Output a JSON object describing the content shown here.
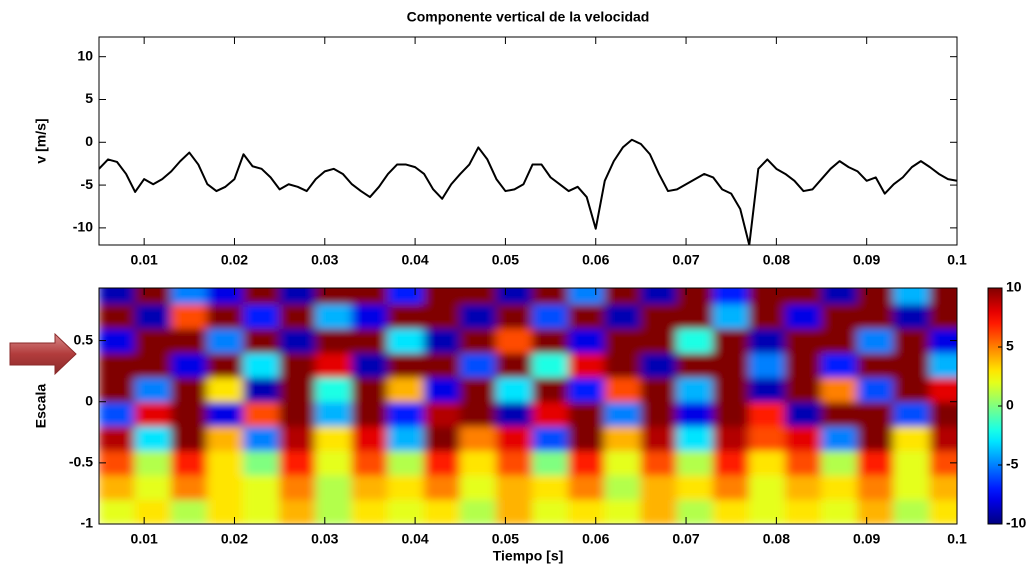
{
  "chart_data": [
    {
      "type": "line",
      "title": "Componente vertical de la velocidad",
      "ylabel": "v [m/s]",
      "xlim": [
        0.005,
        0.1
      ],
      "ylim": [
        -12,
        12.3
      ],
      "xticks": [
        0.01,
        0.02,
        0.03,
        0.04,
        0.05,
        0.06,
        0.07,
        0.08,
        0.09,
        0.1
      ],
      "yticks": [
        -10,
        -5,
        0,
        5,
        10
      ],
      "color": "#000000",
      "x": [
        0.005,
        0.006,
        0.007,
        0.008,
        0.009,
        0.01,
        0.011,
        0.012,
        0.013,
        0.014,
        0.015,
        0.016,
        0.017,
        0.018,
        0.019,
        0.02,
        0.021,
        0.022,
        0.023,
        0.024,
        0.025,
        0.026,
        0.027,
        0.028,
        0.029,
        0.03,
        0.031,
        0.032,
        0.033,
        0.034,
        0.035,
        0.036,
        0.037,
        0.038,
        0.039,
        0.04,
        0.041,
        0.042,
        0.043,
        0.044,
        0.045,
        0.046,
        0.047,
        0.048,
        0.049,
        0.05,
        0.051,
        0.052,
        0.053,
        0.054,
        0.055,
        0.056,
        0.057,
        0.058,
        0.059,
        0.06,
        0.061,
        0.062,
        0.063,
        0.064,
        0.065,
        0.066,
        0.067,
        0.068,
        0.069,
        0.07,
        0.071,
        0.072,
        0.073,
        0.074,
        0.075,
        0.076,
        0.077,
        0.078,
        0.079,
        0.08,
        0.081,
        0.082,
        0.083,
        0.084,
        0.085,
        0.086,
        0.087,
        0.088,
        0.089,
        0.09,
        0.091,
        0.092,
        0.093,
        0.094,
        0.095,
        0.096,
        0.097,
        0.098,
        0.099,
        0.1
      ],
      "values": [
        -3.1,
        -2,
        -2.3,
        -3.7,
        -5.8,
        -4.3,
        -4.9,
        -4.3,
        -3.4,
        -2.2,
        -1.2,
        -2.6,
        -4.9,
        -5.7,
        -5.2,
        -4.3,
        -1.4,
        -2.8,
        -3.1,
        -4.1,
        -5.5,
        -4.9,
        -5.2,
        -5.7,
        -4.3,
        -3.4,
        -3.1,
        -3.7,
        -4.9,
        -5.7,
        -6.4,
        -5.2,
        -3.7,
        -2.6,
        -2.6,
        -2.9,
        -3.7,
        -5.5,
        -6.6,
        -4.9,
        -3.7,
        -2.6,
        -0.6,
        -2.0,
        -4.3,
        -5.7,
        -5.5,
        -4.9,
        -2.6,
        -2.6,
        -4.1,
        -4.9,
        -5.7,
        -5.2,
        -6.4,
        -10.1,
        -4.5,
        -2.2,
        -0.6,
        0.3,
        -0.2,
        -1.4,
        -3.7,
        -5.7,
        -5.5,
        -4.9,
        -4.3,
        -3.7,
        -4.1,
        -5.5,
        -6.0,
        -7.8,
        -12,
        -3.1,
        -2.0,
        -3.1,
        -3.7,
        -4.5,
        -5.7,
        -5.5,
        -4.3,
        -3.1,
        -2.2,
        -2.9,
        -3.4,
        -4.5,
        -4.1,
        -6.0,
        -4.9,
        -4.1,
        -2.9,
        -2.2,
        -2.9,
        -3.7,
        -4.3,
        -4.5
      ]
    },
    {
      "type": "heatmap",
      "xlabel": "Tiempo [s]",
      "ylabel": "Escala",
      "colormap": "jet",
      "xlim": [
        0.005,
        0.1
      ],
      "ylim": [
        -1,
        0.93
      ],
      "xticks": [
        0.01,
        0.02,
        0.03,
        0.04,
        0.05,
        0.06,
        0.07,
        0.08,
        0.09,
        0.1
      ],
      "yticks": [
        -1,
        -0.5,
        0,
        0.5
      ],
      "clim": [
        -10,
        10
      ],
      "cticks": [
        -10,
        -5,
        0,
        5,
        10
      ],
      "x": [
        0.007,
        0.011,
        0.015,
        0.019,
        0.023,
        0.027,
        0.031,
        0.035,
        0.039,
        0.043,
        0.047,
        0.051,
        0.055,
        0.059,
        0.063,
        0.067,
        0.071,
        0.075,
        0.079,
        0.083,
        0.087,
        0.091,
        0.095,
        0.099
      ],
      "y": [
        -0.9,
        -0.7,
        -0.5,
        -0.3,
        -0.1,
        0.1,
        0.3,
        0.5,
        0.7,
        0.9
      ],
      "z": [
        [
          2,
          3,
          1,
          3,
          2,
          4,
          1,
          3,
          2,
          3,
          1,
          4,
          2,
          3,
          2,
          4,
          1,
          3,
          2,
          3,
          2,
          4,
          1,
          3
        ],
        [
          4,
          2,
          5,
          3,
          2,
          5,
          1,
          4,
          3,
          5,
          2,
          4,
          3,
          5,
          1,
          4,
          3,
          5,
          2,
          4,
          3,
          5,
          2,
          4
        ],
        [
          6,
          1,
          7,
          3,
          0,
          7,
          2,
          6,
          1,
          7,
          3,
          6,
          0,
          7,
          2,
          6,
          1,
          7,
          3,
          6,
          1,
          7,
          2,
          6
        ],
        [
          9,
          -3,
          10,
          4,
          -5,
          9,
          3,
          8,
          -4,
          10,
          5,
          8,
          -6,
          10,
          4,
          9,
          -3,
          9,
          6,
          8,
          -5,
          10,
          3,
          9
        ],
        [
          -6,
          8,
          10,
          -8,
          6,
          10,
          -4,
          10,
          -7,
          9,
          10,
          -9,
          8,
          10,
          -5,
          10,
          -8,
          10,
          7,
          -9,
          10,
          10,
          -6,
          10
        ],
        [
          10,
          -5,
          10,
          3,
          -9,
          10,
          -2,
          10,
          4,
          -8,
          10,
          -3,
          10,
          -7,
          6,
          10,
          -4,
          10,
          -9,
          10,
          5,
          -6,
          10,
          8
        ],
        [
          10,
          10,
          -8,
          10,
          -3,
          10,
          8,
          -9,
          10,
          10,
          -6,
          10,
          -2,
          8,
          10,
          -9,
          10,
          10,
          -5,
          10,
          -7,
          10,
          10,
          -4
        ],
        [
          -8,
          10,
          10,
          -5,
          10,
          -9,
          10,
          10,
          -3,
          -9,
          10,
          6,
          10,
          -8,
          10,
          10,
          -2,
          10,
          -9,
          10,
          10,
          -5,
          10,
          -8
        ],
        [
          10,
          -9,
          6,
          10,
          -7,
          10,
          -4,
          -8,
          10,
          10,
          -9,
          10,
          -6,
          10,
          -9,
          10,
          10,
          -4,
          10,
          -8,
          10,
          10,
          -9,
          10
        ],
        [
          -9,
          10,
          -5,
          -8,
          10,
          -9,
          10,
          10,
          -7,
          10,
          10,
          -9,
          10,
          -5,
          10,
          -9,
          10,
          -7,
          10,
          10,
          -9,
          10,
          -4,
          10
        ]
      ]
    }
  ]
}
